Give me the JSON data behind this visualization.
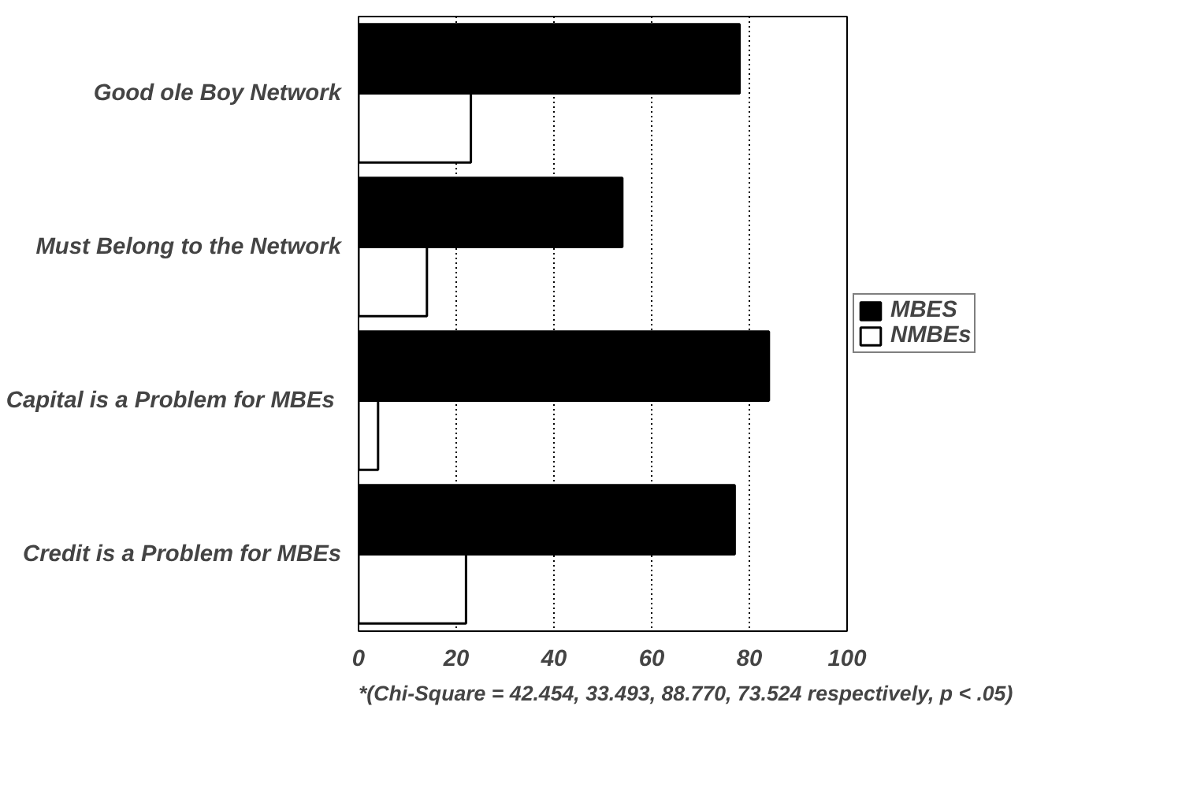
{
  "chart_data": {
    "type": "bar",
    "orientation": "horizontal",
    "categories": [
      "Good ole Boy Network",
      "Must Belong to the Network",
      "Capital  is a Problem for MBEs",
      "Credit is a Problem for MBEs"
    ],
    "series": [
      {
        "name": "MBES",
        "color": "#000000",
        "values": [
          78,
          54,
          84,
          77
        ]
      },
      {
        "name": "NMBEs",
        "color": "#ffffff",
        "values": [
          23,
          14,
          4,
          22
        ]
      }
    ],
    "xlim": [
      0,
      100
    ],
    "xticks": [
      0,
      20,
      40,
      60,
      80,
      100
    ],
    "grid": "x",
    "legend": "right",
    "annotations": [
      "*(Chi-Square = 42.454, 33.493, 88.770, 73.524 respectively, p < .05)"
    ]
  }
}
